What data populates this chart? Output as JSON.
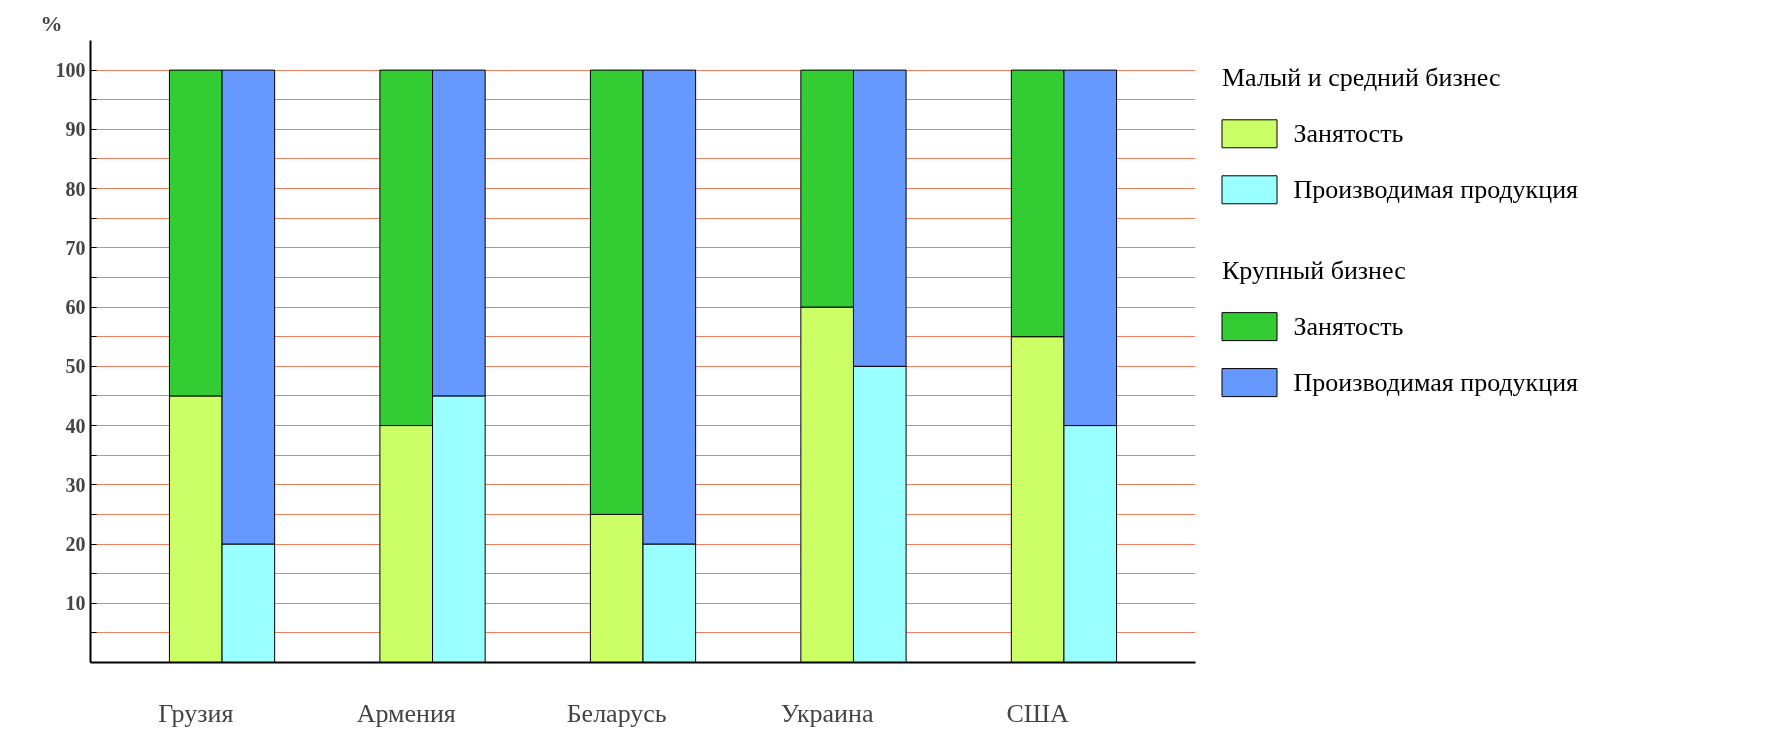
{
  "chart_data": {
    "type": "bar",
    "stacked": true,
    "ylabel": "%",
    "categories": [
      "Грузия",
      null,
      null,
      null,
      "Армения",
      null,
      null,
      null,
      "Беларусь",
      null,
      null,
      null,
      "Украина",
      null,
      null,
      null,
      "США",
      null
    ],
    "legend_title": [
      "Малый и средний бизнес",
      "Крупный бизнес"
    ],
    "series": [
      {
        "name": "Занятость",
        "color": "#ccff66",
        "values": [
          45,
          null,
          null,
          null,
          40,
          null,
          null,
          null,
          25,
          null,
          null,
          null,
          60,
          null,
          null,
          null,
          55,
          null
        ]
      },
      {
        "name": "Производимая продукция",
        "color": "#99ffff",
        "values": [
          null,
          20,
          null,
          null,
          null,
          45,
          null,
          null,
          null,
          20,
          null,
          null,
          null,
          50,
          null,
          null,
          null,
          40
        ]
      },
      {
        "name": "Занятость",
        "color": "#33cc33",
        "values": [
          55,
          null,
          null,
          null,
          60,
          null,
          null,
          null,
          75,
          null,
          null,
          null,
          40,
          null,
          null,
          null,
          45,
          null
        ]
      },
      {
        "name": "Производимая продукция",
        "color": "#6699ff",
        "values": [
          null,
          80,
          null,
          null,
          null,
          55,
          null,
          null,
          null,
          80,
          null,
          null,
          null,
          50,
          null,
          null,
          null,
          60
        ]
      }
    ],
    "ylim": [
      0,
      105
    ],
    "yticks": [
      {
        "value": 5,
        "label": null
      },
      10,
      {
        "value": 15,
        "label": null
      },
      20,
      {
        "value": 25,
        "label": null
      },
      30,
      {
        "value": 35,
        "label": null
      },
      40,
      {
        "value": 45,
        "label": null
      },
      50,
      {
        "value": 55,
        "label": null
      },
      60,
      {
        "value": 65,
        "label": null
      },
      70,
      {
        "value": 75,
        "label": null
      },
      80,
      {
        "value": 85,
        "label": null
      },
      90,
      {
        "value": 95,
        "label": null
      },
      100
    ],
    "grid": "y",
    "legend": "right"
  }
}
